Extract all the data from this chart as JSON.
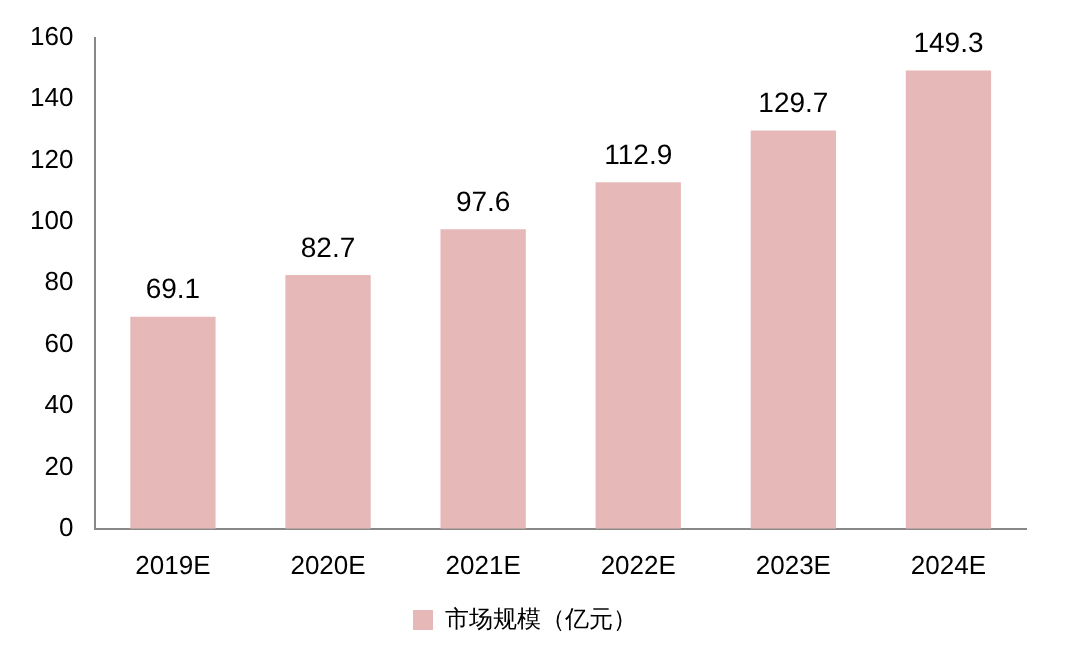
{
  "chart_data": {
    "type": "bar",
    "categories": [
      "2019E",
      "2020E",
      "2021E",
      "2022E",
      "2023E",
      "2024E"
    ],
    "series": [
      {
        "name": "市场规模（亿元）",
        "color": "#e6b8b7",
        "values": [
          69.1,
          82.7,
          97.6,
          112.9,
          129.7,
          149.3
        ]
      }
    ],
    "ylim": [
      0,
      160
    ],
    "yticks": [
      0,
      20,
      40,
      60,
      80,
      100,
      120,
      140,
      160
    ],
    "grid": false,
    "legend": "bottom",
    "data_labels": true
  }
}
